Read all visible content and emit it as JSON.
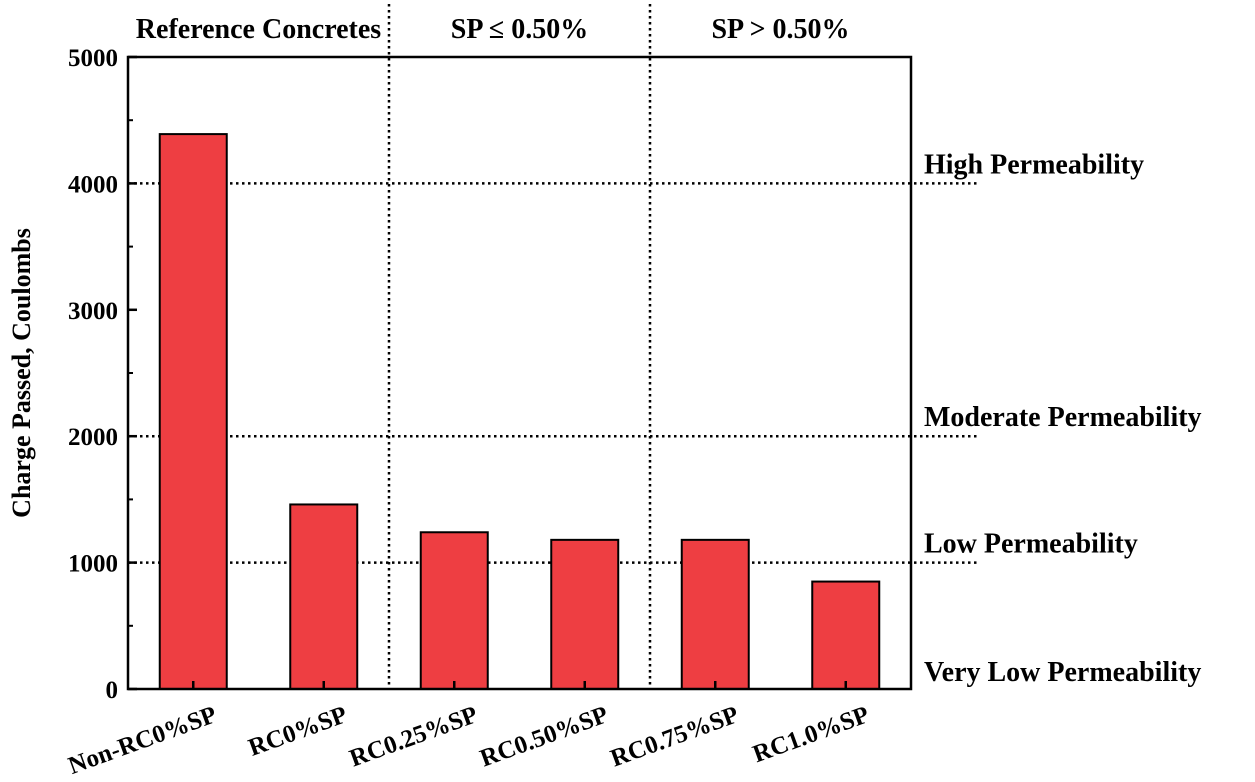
{
  "chart_data": {
    "type": "bar",
    "title": "",
    "xlabel": "",
    "ylabel": "Charge Passed, Coulombs",
    "categories": [
      "Non-RC0%SP",
      "RC0%SP",
      "RC0.25%SP",
      "RC0.50%SP",
      "RC0.75%SP",
      "RC1.0%SP"
    ],
    "values": [
      4390,
      1460,
      1240,
      1180,
      1180,
      850
    ],
    "ylim": [
      0,
      5000
    ],
    "yticks": [
      0,
      1000,
      2000,
      3000,
      4000,
      5000
    ],
    "bar_color": "#ee3e42",
    "groups": [
      {
        "label": "Reference Concretes",
        "from": 0,
        "to": 1
      },
      {
        "label": "SP ≤ 0.50%",
        "from": 2,
        "to": 3
      },
      {
        "label": "SP > 0.50%",
        "from": 4,
        "to": 5
      }
    ],
    "thresholds": [
      {
        "value": 4000,
        "label": "High Permeability"
      },
      {
        "value": 2000,
        "label": "Moderate Permeability"
      },
      {
        "value": 1000,
        "label": "Low Permeability"
      },
      {
        "value": 0,
        "label": "Very Low Permeability"
      }
    ]
  }
}
